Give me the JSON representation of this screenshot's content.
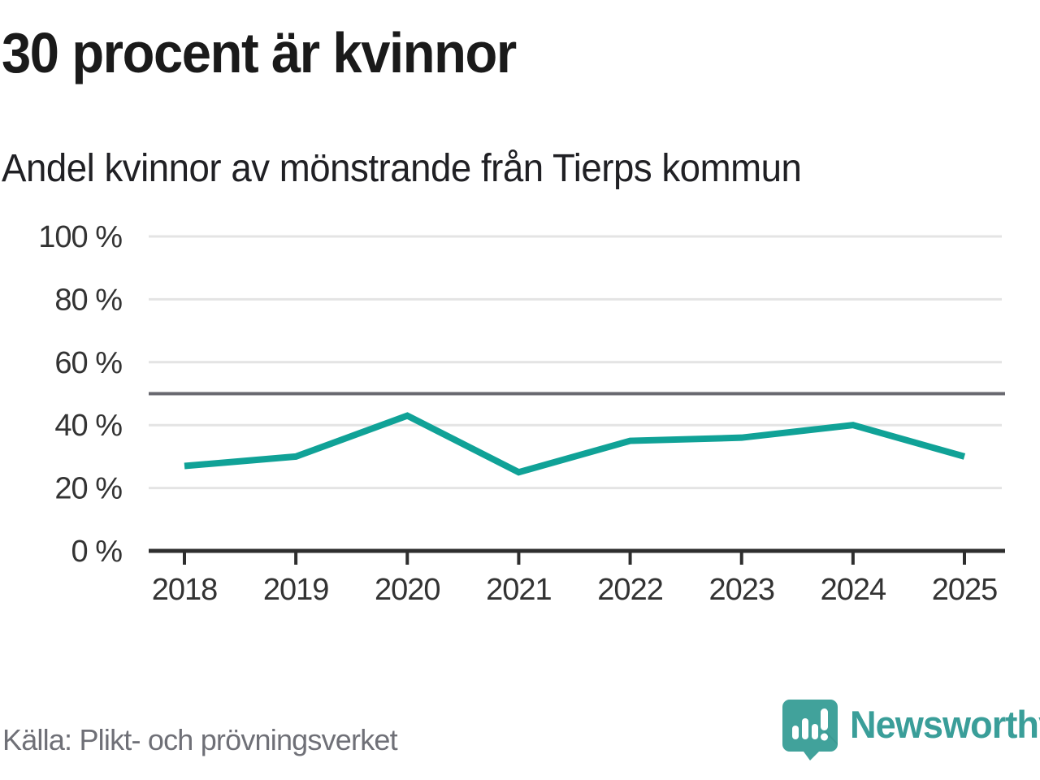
{
  "header": {
    "title": "30 procent är kvinnor",
    "subtitle": "Andel kvinnor av mönstrande från Tierps kommun"
  },
  "footer": {
    "source": "Källa: Plikt- och prövningsverket",
    "brand": "Newsworthy",
    "logo_icon": "speech-bubble-with-bar-chart-and-exclamation"
  },
  "colors": {
    "line": "#10a297",
    "grid": "#e4e4e4",
    "reference_line": "#68686f",
    "axis": "#2e2e2e",
    "tick_text": "#333333",
    "title_text": "#1a1a1a",
    "source_text": "#6f7077",
    "brand_teal": "#3a9e99",
    "brand_icon_teal": "#41a29b"
  },
  "chart_data": {
    "type": "line",
    "title": "30 procent är kvinnor",
    "subtitle": "Andel kvinnor av mönstrande från Tierps kommun",
    "source": "Källa: Plikt- och prövningsverket",
    "x": [
      "2018",
      "2019",
      "2020",
      "2021",
      "2022",
      "2023",
      "2024",
      "2025"
    ],
    "series": [
      {
        "name": "Andel kvinnor av mönstrande, Tierps kommun",
        "values": [
          27,
          30,
          43,
          25,
          35,
          36,
          40,
          30
        ]
      }
    ],
    "unit": "%",
    "ylim": [
      0,
      100
    ],
    "yticks": [
      0,
      20,
      40,
      60,
      80,
      100
    ],
    "ytick_suffix": " %",
    "reference_line": 50,
    "grid": true,
    "legend": false
  }
}
